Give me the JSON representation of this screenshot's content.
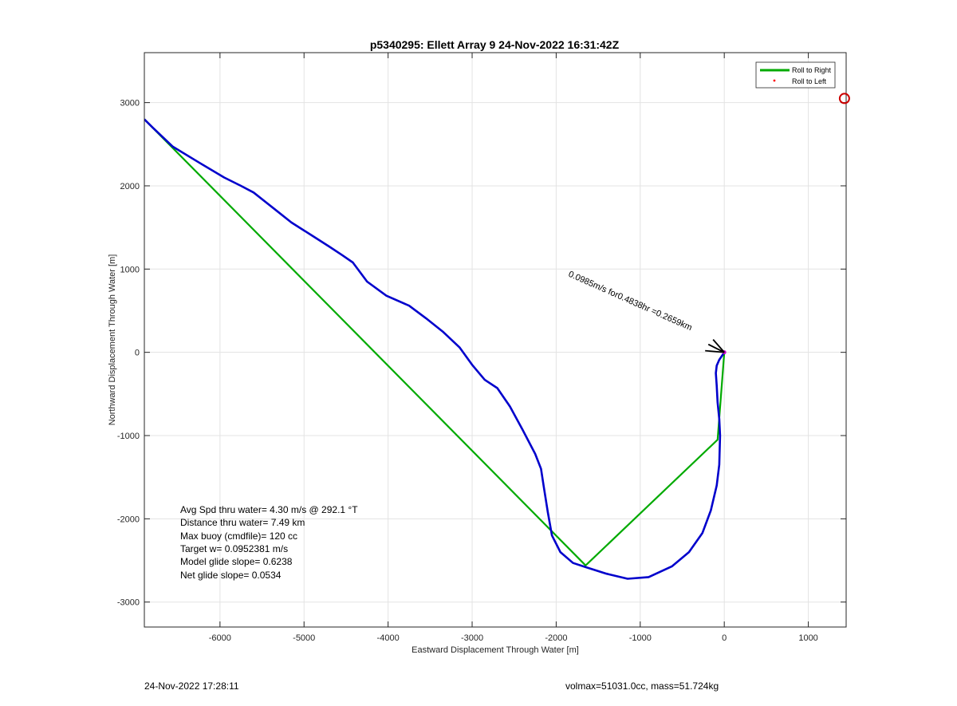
{
  "chart_data": {
    "type": "line",
    "title": "p5340295: Ellett Array 9 24-Nov-2022 16:31:42Z",
    "xlabel": "Eastward Displacement Through Water [m]",
    "ylabel": "Northward Displacement Through Water [m]",
    "xlim": [
      -6900,
      1450
    ],
    "ylim": [
      -3300,
      3600
    ],
    "xticks": [
      -6000,
      -5000,
      -4000,
      -3000,
      -2000,
      -1000,
      0,
      1000
    ],
    "yticks": [
      -3000,
      -2000,
      -1000,
      0,
      1000,
      2000,
      3000
    ],
    "grid": true,
    "legend_position": "top-right",
    "legend": [
      {
        "label": "Roll to Right",
        "color": "#00aa00",
        "style": "line"
      },
      {
        "label": "Roll to Left",
        "color": "#ff0000",
        "style": "dot"
      }
    ],
    "series": [
      {
        "color": "#00aa00",
        "x": [
          0,
          -80,
          -1650,
          -6900
        ],
        "y": [
          0,
          -1050,
          -2560,
          2800
        ]
      },
      {
        "color": "#0000cc",
        "x": [
          -6900,
          -6800,
          -6560,
          -6250,
          -5950,
          -5750,
          -5600,
          -5350,
          -5150,
          -4900,
          -4700,
          -4550,
          -4420,
          -4250,
          -4020,
          -3750,
          -3550,
          -3350,
          -3150,
          -3000,
          -2850,
          -2700,
          -2550,
          -2400,
          -2250,
          -2180,
          -2150,
          -2100,
          -2050,
          -1950,
          -1800,
          -1650,
          -1400,
          -1150,
          -900,
          -620,
          -420,
          -260,
          -160,
          -90,
          -60,
          -50,
          -60,
          -80,
          -90,
          -100,
          -90,
          -60,
          -20,
          0
        ],
        "y": [
          2800,
          2700,
          2470,
          2280,
          2100,
          2000,
          1920,
          1720,
          1560,
          1400,
          1270,
          1170,
          1080,
          850,
          680,
          560,
          410,
          250,
          60,
          -150,
          -330,
          -430,
          -650,
          -930,
          -1220,
          -1400,
          -1600,
          -1920,
          -2200,
          -2400,
          -2530,
          -2580,
          -2660,
          -2720,
          -2700,
          -2570,
          -2400,
          -2170,
          -1900,
          -1600,
          -1350,
          -1000,
          -800,
          -600,
          -400,
          -250,
          -160,
          -90,
          -30,
          0
        ]
      }
    ],
    "markers": [
      {
        "x": 1430,
        "y": 3050,
        "color": "#cc0000",
        "shape": "circle"
      },
      {
        "x": 0,
        "y": 0,
        "color": "#cc00cc",
        "shape": "dot"
      }
    ],
    "annotations": [
      "Avg Spd thru water=  4.30 m/s @ 292.1 °T",
      "Distance thru water=  7.49 km",
      "Max buoy (cmdfile)= 120 cc",
      "Target w= 0.0952381 m/s",
      "Model glide slope= 0.6238",
      "Net glide slope= 0.0534"
    ],
    "current_label": "0.0985m/s for0.4838hr =0.2659km"
  },
  "footer": {
    "left": "24-Nov-2022 17:28:11",
    "right": "volmax=51031.0cc, mass=51.724kg"
  }
}
